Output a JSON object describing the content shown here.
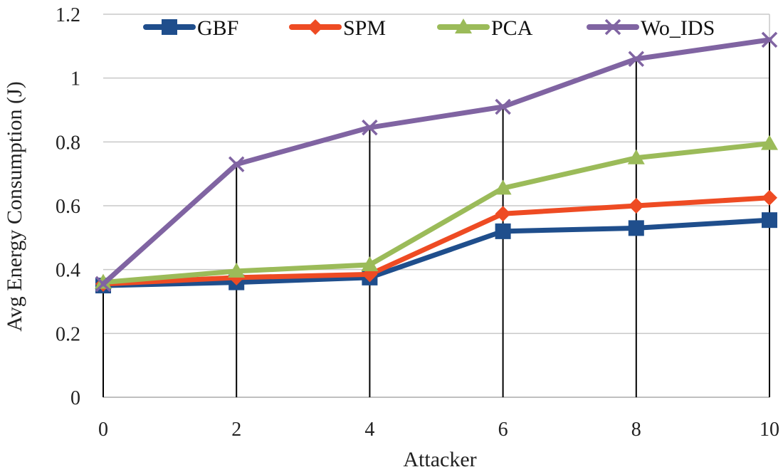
{
  "chart_data": {
    "type": "line",
    "title": "",
    "xlabel": "Attacker",
    "ylabel": "Avg Energy Consumption (J)",
    "x": [
      0,
      2,
      4,
      6,
      8,
      10
    ],
    "xlim": [
      0,
      10
    ],
    "ylim": [
      0,
      1.2
    ],
    "yticks": [
      "0",
      "0.2",
      "0.4",
      "0.6",
      "0.8",
      "1",
      "1.2"
    ],
    "xticks": [
      "0",
      "2",
      "4",
      "6",
      "8",
      "10"
    ],
    "grid": true,
    "drop_lines": true,
    "legend_position": "top",
    "series": [
      {
        "name": "GBF",
        "color": "#1F4E8C",
        "marker": "square",
        "values": [
          0.35,
          0.36,
          0.375,
          0.52,
          0.53,
          0.555
        ]
      },
      {
        "name": "SPM",
        "color": "#EE4B23",
        "marker": "diamond",
        "values": [
          0.355,
          0.375,
          0.385,
          0.575,
          0.6,
          0.625
        ]
      },
      {
        "name": "PCA",
        "color": "#9BBB59",
        "marker": "triangle",
        "values": [
          0.36,
          0.395,
          0.415,
          0.655,
          0.75,
          0.795
        ]
      },
      {
        "name": "Wo_IDS",
        "color": "#8064A2",
        "marker": "x",
        "values": [
          0.355,
          0.73,
          0.845,
          0.91,
          1.06,
          1.12
        ]
      }
    ]
  }
}
